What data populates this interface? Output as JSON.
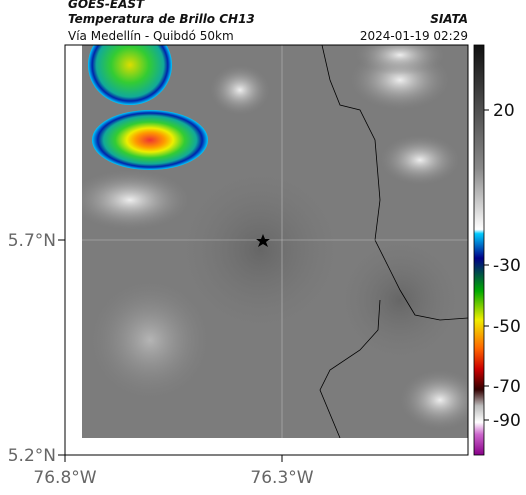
{
  "header": {
    "satellite": "GOES-EAST",
    "product": "Temperatura de Brillo CH13",
    "route": "Vía Medellín - Quibdó 50km",
    "agency": "SIATA",
    "datetime": "2024-01-19 02:29"
  },
  "axes": {
    "lat_labels": [
      "5.7°N",
      "5.2°N"
    ],
    "lon_labels": [
      "76.8°W",
      "76.3°W"
    ]
  },
  "colorbar": {
    "ticks": [
      20,
      -30,
      -50,
      -70,
      -90
    ]
  }
}
